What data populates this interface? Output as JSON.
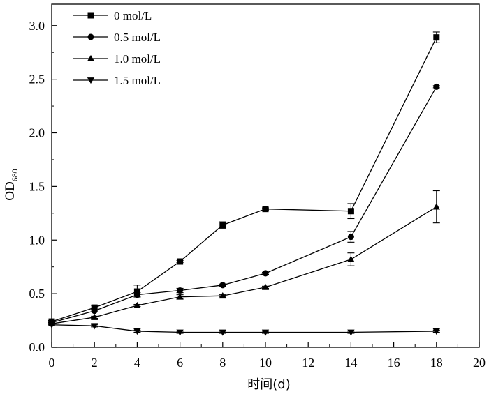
{
  "chart_data": {
    "type": "line",
    "xlabel": "时间(d)",
    "ylabel": "OD",
    "ylabel_subscript": "680",
    "xlim": [
      0,
      20
    ],
    "ylim": [
      0,
      3.2
    ],
    "x_ticks": [
      0,
      2,
      4,
      6,
      8,
      10,
      12,
      14,
      16,
      18,
      20
    ],
    "y_ticks": [
      0.0,
      0.5,
      1.0,
      1.5,
      2.0,
      2.5,
      3.0
    ],
    "y_tick_labels": [
      "0.0",
      "0.5",
      "1.0",
      "1.5",
      "2.0",
      "2.5",
      "3.0"
    ],
    "grid": false,
    "legend_position": "top-left",
    "series": [
      {
        "name": "0 mol/L",
        "marker": "square",
        "x": [
          0,
          2,
          4,
          6,
          8,
          10,
          14,
          18
        ],
        "y": [
          0.24,
          0.37,
          0.52,
          0.8,
          1.14,
          1.29,
          1.27,
          2.89
        ],
        "err": [
          0.01,
          0.02,
          0.06,
          0.01,
          0.03,
          0.01,
          0.07,
          0.05
        ]
      },
      {
        "name": "0.5 mol/L",
        "marker": "circle",
        "x": [
          0,
          2,
          4,
          6,
          8,
          10,
          14,
          18
        ],
        "y": [
          0.23,
          0.34,
          0.49,
          0.53,
          0.58,
          0.69,
          1.03,
          2.43
        ],
        "err": [
          0.01,
          0.01,
          0.02,
          0.02,
          0.01,
          0.01,
          0.05,
          0.01
        ]
      },
      {
        "name": "1.0 mol/L",
        "marker": "triangle-up",
        "x": [
          0,
          2,
          4,
          6,
          8,
          10,
          14,
          18
        ],
        "y": [
          0.22,
          0.28,
          0.39,
          0.47,
          0.48,
          0.56,
          0.82,
          1.31
        ],
        "err": [
          0.01,
          0.01,
          0.01,
          0.02,
          0.01,
          0.01,
          0.06,
          0.15
        ]
      },
      {
        "name": "1.5 mol/L",
        "marker": "triangle-down",
        "x": [
          0,
          2,
          4,
          6,
          8,
          10,
          14,
          18
        ],
        "y": [
          0.21,
          0.2,
          0.15,
          0.14,
          0.14,
          0.14,
          0.14,
          0.15
        ],
        "err": [
          0.01,
          0.01,
          0.01,
          0.01,
          0.01,
          0.01,
          0.01,
          0.01
        ]
      }
    ]
  }
}
